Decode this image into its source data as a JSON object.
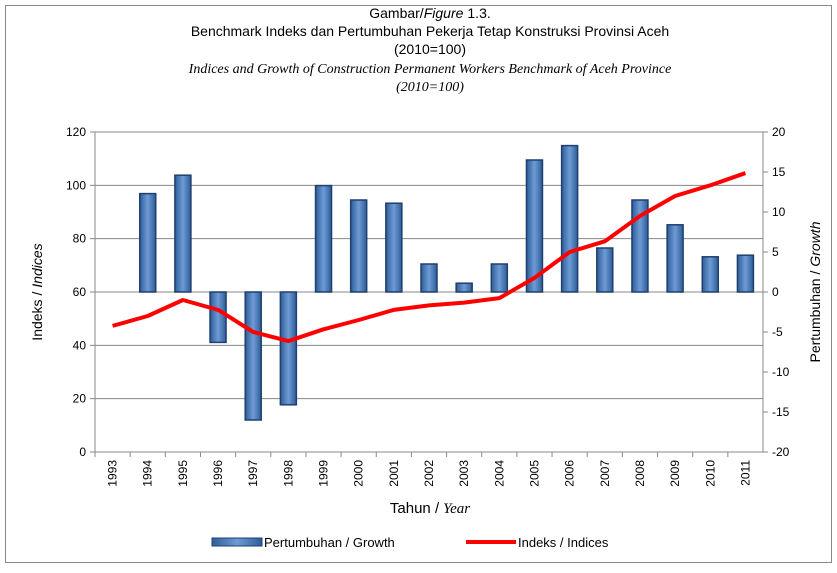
{
  "chart_data": {
    "type": "bar-line",
    "title": {
      "prefix": "Gambar/",
      "italic": "Figure",
      "number": "1.3."
    },
    "title_lines": [
      "Benchmark Indeks dan Pertumbuhan Pekerja Tetap Konstruksi Provinsi Aceh",
      "(2010=100)"
    ],
    "subtitle_lines": [
      "Indices and Growth of Construction Permanent Workers Benchmark of Aceh Province",
      "(2010=100)"
    ],
    "x_label": {
      "plain": "Tahun /",
      "italic": "Year"
    },
    "y_label": {
      "plain": "Indeks /",
      "italic": "Indices"
    },
    "y2_label": {
      "plain": "Pertumbuhan /",
      "italic": "Growth"
    },
    "categories": [
      "1993",
      "1994",
      "1995",
      "1996",
      "1997",
      "1998",
      "1999",
      "2000",
      "2001",
      "2002",
      "2003",
      "2004",
      "2005",
      "2006",
      "2007",
      "2008",
      "2009",
      "2010",
      "2011"
    ],
    "series": [
      {
        "name": "Pertumbuhan / Growth",
        "type": "bar",
        "axis": "y2",
        "color": "#4f81bd",
        "values": [
          null,
          12.3,
          14.6,
          -6.3,
          -16,
          -14.1,
          13.3,
          11.5,
          11.1,
          3.5,
          1.1,
          3.5,
          16.5,
          18.3,
          5.5,
          11.5,
          8.4,
          4.4,
          4.6
        ]
      },
      {
        "name": "Indeks / Indices",
        "type": "line",
        "axis": "y",
        "color": "#ff0000",
        "values": [
          47.3,
          51,
          57,
          53.3,
          45,
          41.6,
          46,
          49.5,
          53.3,
          55,
          56,
          57.7,
          65.3,
          75,
          79,
          88.5,
          96,
          100,
          104.6
        ]
      }
    ],
    "ylim": [
      0,
      120
    ],
    "yticks": [
      0,
      20,
      40,
      60,
      80,
      100,
      120
    ],
    "y2lim": [
      -20,
      20
    ],
    "y2ticks": [
      -20,
      -15,
      -10,
      -5,
      0,
      5,
      10,
      15,
      20
    ],
    "grid": true,
    "legend": "bottom"
  }
}
